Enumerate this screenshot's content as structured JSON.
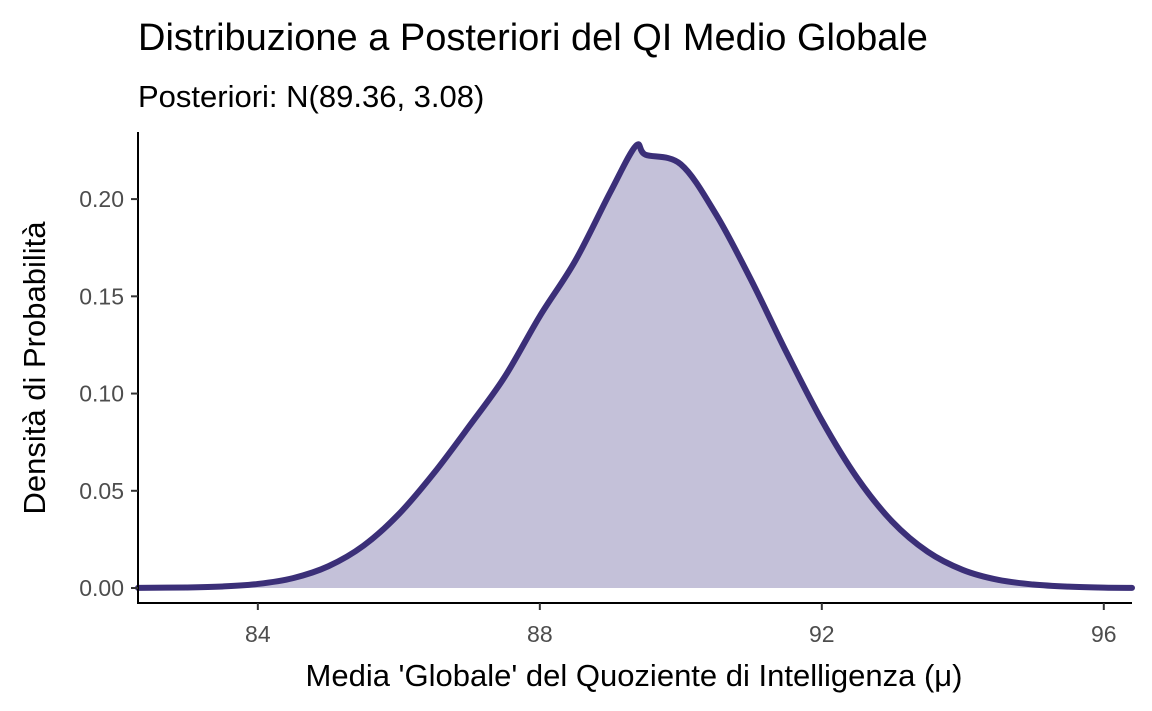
{
  "chart_data": {
    "type": "area",
    "title": "Distribuzione a Posteriori del QI Medio Globale",
    "subtitle": "Posteriori: N(89.36, 3.08)",
    "xlabel": "Media 'Globale' del Quoziente di Intelligenza (μ)",
    "ylabel": "Densità di Probabilità",
    "xlim": [
      82.3,
      96.4
    ],
    "ylim": [
      -0.0077,
      0.2345
    ],
    "x_ticks": [
      84,
      88,
      92,
      96
    ],
    "x_tick_labels": [
      "84",
      "88",
      "92",
      "96"
    ],
    "y_ticks": [
      0,
      0.05,
      0.1,
      0.15,
      0.2
    ],
    "y_tick_labels": [
      "0.00",
      "0.05",
      "0.10",
      "0.15",
      "0.20"
    ],
    "grid": false,
    "legend": "none",
    "series": [
      {
        "x": [
          82.3,
          83,
          83.5,
          84,
          84.5,
          85,
          85.5,
          86,
          86.5,
          87,
          87.5,
          88,
          88.5,
          89,
          89.36,
          89.5,
          90,
          90.5,
          91,
          91.5,
          92,
          92.5,
          93,
          93.5,
          94,
          94.5,
          95,
          95.5,
          96,
          96.4
        ],
        "y": [
          0.0001,
          0.0003,
          0.0008,
          0.0021,
          0.0051,
          0.0112,
          0.0218,
          0.038,
          0.0592,
          0.0833,
          0.1085,
          0.1398,
          0.1681,
          0.2036,
          0.2273,
          0.2228,
          0.2179,
          0.1921,
          0.1582,
          0.1211,
          0.0862,
          0.0567,
          0.0341,
          0.0187,
          0.0093,
          0.0042,
          0.0018,
          0.0007,
          0.0002,
          0.0001
        ]
      }
    ],
    "colors": {
      "line": "#3b2f78",
      "fill": "#c4c1d9"
    }
  }
}
